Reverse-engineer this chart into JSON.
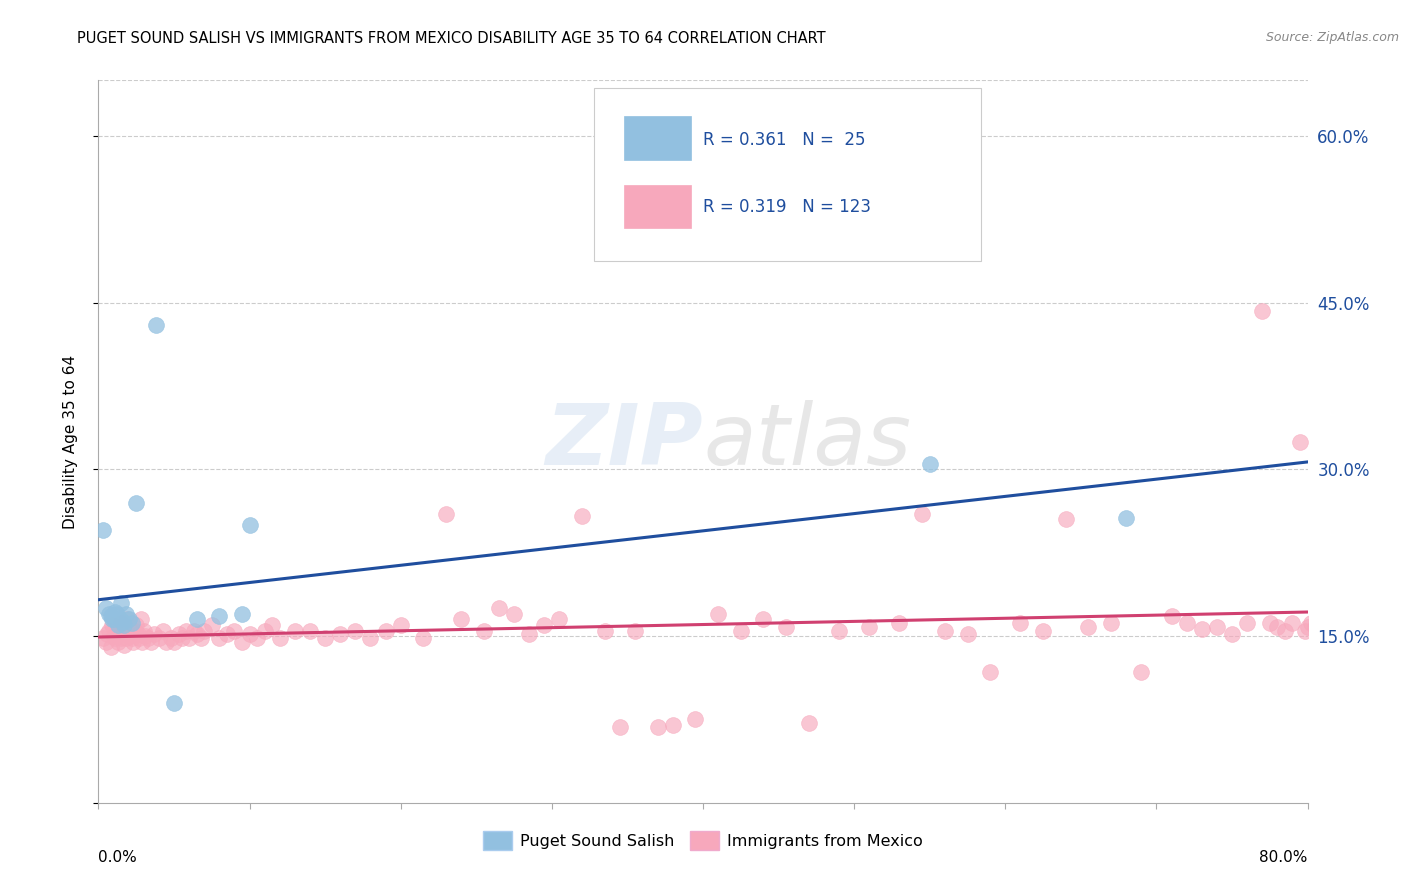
{
  "title": "PUGET SOUND SALISH VS IMMIGRANTS FROM MEXICO DISABILITY AGE 35 TO 64 CORRELATION CHART",
  "source": "Source: ZipAtlas.com",
  "ylabel": "Disability Age 35 to 64",
  "legend_blue_label": "Puget Sound Salish",
  "legend_pink_label": "Immigrants from Mexico",
  "R_blue": 0.361,
  "N_blue": 25,
  "R_pink": 0.319,
  "N_pink": 123,
  "blue_color": "#92c0e0",
  "pink_color": "#f7a8bc",
  "blue_line_color": "#1f4e9e",
  "pink_line_color": "#d04070",
  "xlim": [
    0.0,
    0.8
  ],
  "ylim": [
    0.0,
    0.65
  ],
  "yticks_right": [
    0.15,
    0.3,
    0.45,
    0.6
  ],
  "blue_scatter_x": [
    0.003,
    0.005,
    0.007,
    0.008,
    0.009,
    0.01,
    0.011,
    0.012,
    0.013,
    0.014,
    0.015,
    0.016,
    0.017,
    0.018,
    0.02,
    0.022,
    0.025,
    0.038,
    0.05,
    0.065,
    0.08,
    0.095,
    0.1,
    0.55,
    0.68
  ],
  "blue_scatter_y": [
    0.245,
    0.175,
    0.17,
    0.168,
    0.165,
    0.165,
    0.172,
    0.17,
    0.16,
    0.165,
    0.18,
    0.163,
    0.16,
    0.17,
    0.165,
    0.162,
    0.27,
    0.43,
    0.09,
    0.165,
    0.168,
    0.17,
    0.25,
    0.305,
    0.256
  ],
  "pink_scatter_x": [
    0.003,
    0.005,
    0.006,
    0.007,
    0.008,
    0.009,
    0.01,
    0.011,
    0.012,
    0.013,
    0.014,
    0.015,
    0.015,
    0.016,
    0.017,
    0.018,
    0.019,
    0.02,
    0.021,
    0.022,
    0.023,
    0.024,
    0.025,
    0.026,
    0.027,
    0.028,
    0.029,
    0.03,
    0.031,
    0.033,
    0.035,
    0.037,
    0.04,
    0.043,
    0.045,
    0.048,
    0.05,
    0.053,
    0.055,
    0.058,
    0.06,
    0.063,
    0.065,
    0.068,
    0.07,
    0.075,
    0.08,
    0.085,
    0.09,
    0.095,
    0.1,
    0.105,
    0.11,
    0.115,
    0.12,
    0.13,
    0.14,
    0.15,
    0.16,
    0.17,
    0.18,
    0.19,
    0.2,
    0.215,
    0.23,
    0.24,
    0.255,
    0.265,
    0.275,
    0.285,
    0.295,
    0.305,
    0.32,
    0.335,
    0.345,
    0.355,
    0.37,
    0.38,
    0.395,
    0.41,
    0.425,
    0.44,
    0.455,
    0.47,
    0.49,
    0.51,
    0.53,
    0.545,
    0.56,
    0.575,
    0.59,
    0.61,
    0.625,
    0.64,
    0.655,
    0.67,
    0.69,
    0.71,
    0.72,
    0.73,
    0.74,
    0.75,
    0.76,
    0.77,
    0.775,
    0.78,
    0.785,
    0.79,
    0.795,
    0.798,
    0.8,
    0.802,
    0.805,
    0.808,
    0.81,
    0.812,
    0.814,
    0.816,
    0.818,
    0.82,
    0.822,
    0.824,
    0.826
  ],
  "pink_scatter_y": [
    0.148,
    0.145,
    0.152,
    0.155,
    0.14,
    0.16,
    0.15,
    0.148,
    0.152,
    0.145,
    0.158,
    0.162,
    0.148,
    0.155,
    0.142,
    0.148,
    0.165,
    0.158,
    0.15,
    0.148,
    0.145,
    0.155,
    0.16,
    0.152,
    0.148,
    0.165,
    0.145,
    0.155,
    0.15,
    0.148,
    0.145,
    0.152,
    0.148,
    0.155,
    0.145,
    0.148,
    0.145,
    0.152,
    0.148,
    0.155,
    0.148,
    0.155,
    0.152,
    0.148,
    0.155,
    0.16,
    0.148,
    0.152,
    0.155,
    0.145,
    0.152,
    0.148,
    0.155,
    0.16,
    0.148,
    0.155,
    0.155,
    0.148,
    0.152,
    0.155,
    0.148,
    0.155,
    0.16,
    0.148,
    0.26,
    0.165,
    0.155,
    0.175,
    0.17,
    0.152,
    0.16,
    0.165,
    0.258,
    0.155,
    0.068,
    0.155,
    0.068,
    0.07,
    0.075,
    0.17,
    0.155,
    0.165,
    0.158,
    0.072,
    0.155,
    0.158,
    0.162,
    0.26,
    0.155,
    0.152,
    0.118,
    0.162,
    0.155,
    0.255,
    0.158,
    0.162,
    0.118,
    0.168,
    0.162,
    0.156,
    0.158,
    0.152,
    0.162,
    0.442,
    0.162,
    0.158,
    0.155,
    0.162,
    0.325,
    0.155,
    0.158,
    0.162,
    0.158,
    0.162,
    0.155,
    0.165,
    0.162,
    0.158,
    0.162,
    0.155,
    0.16,
    0.162,
    0.158
  ]
}
